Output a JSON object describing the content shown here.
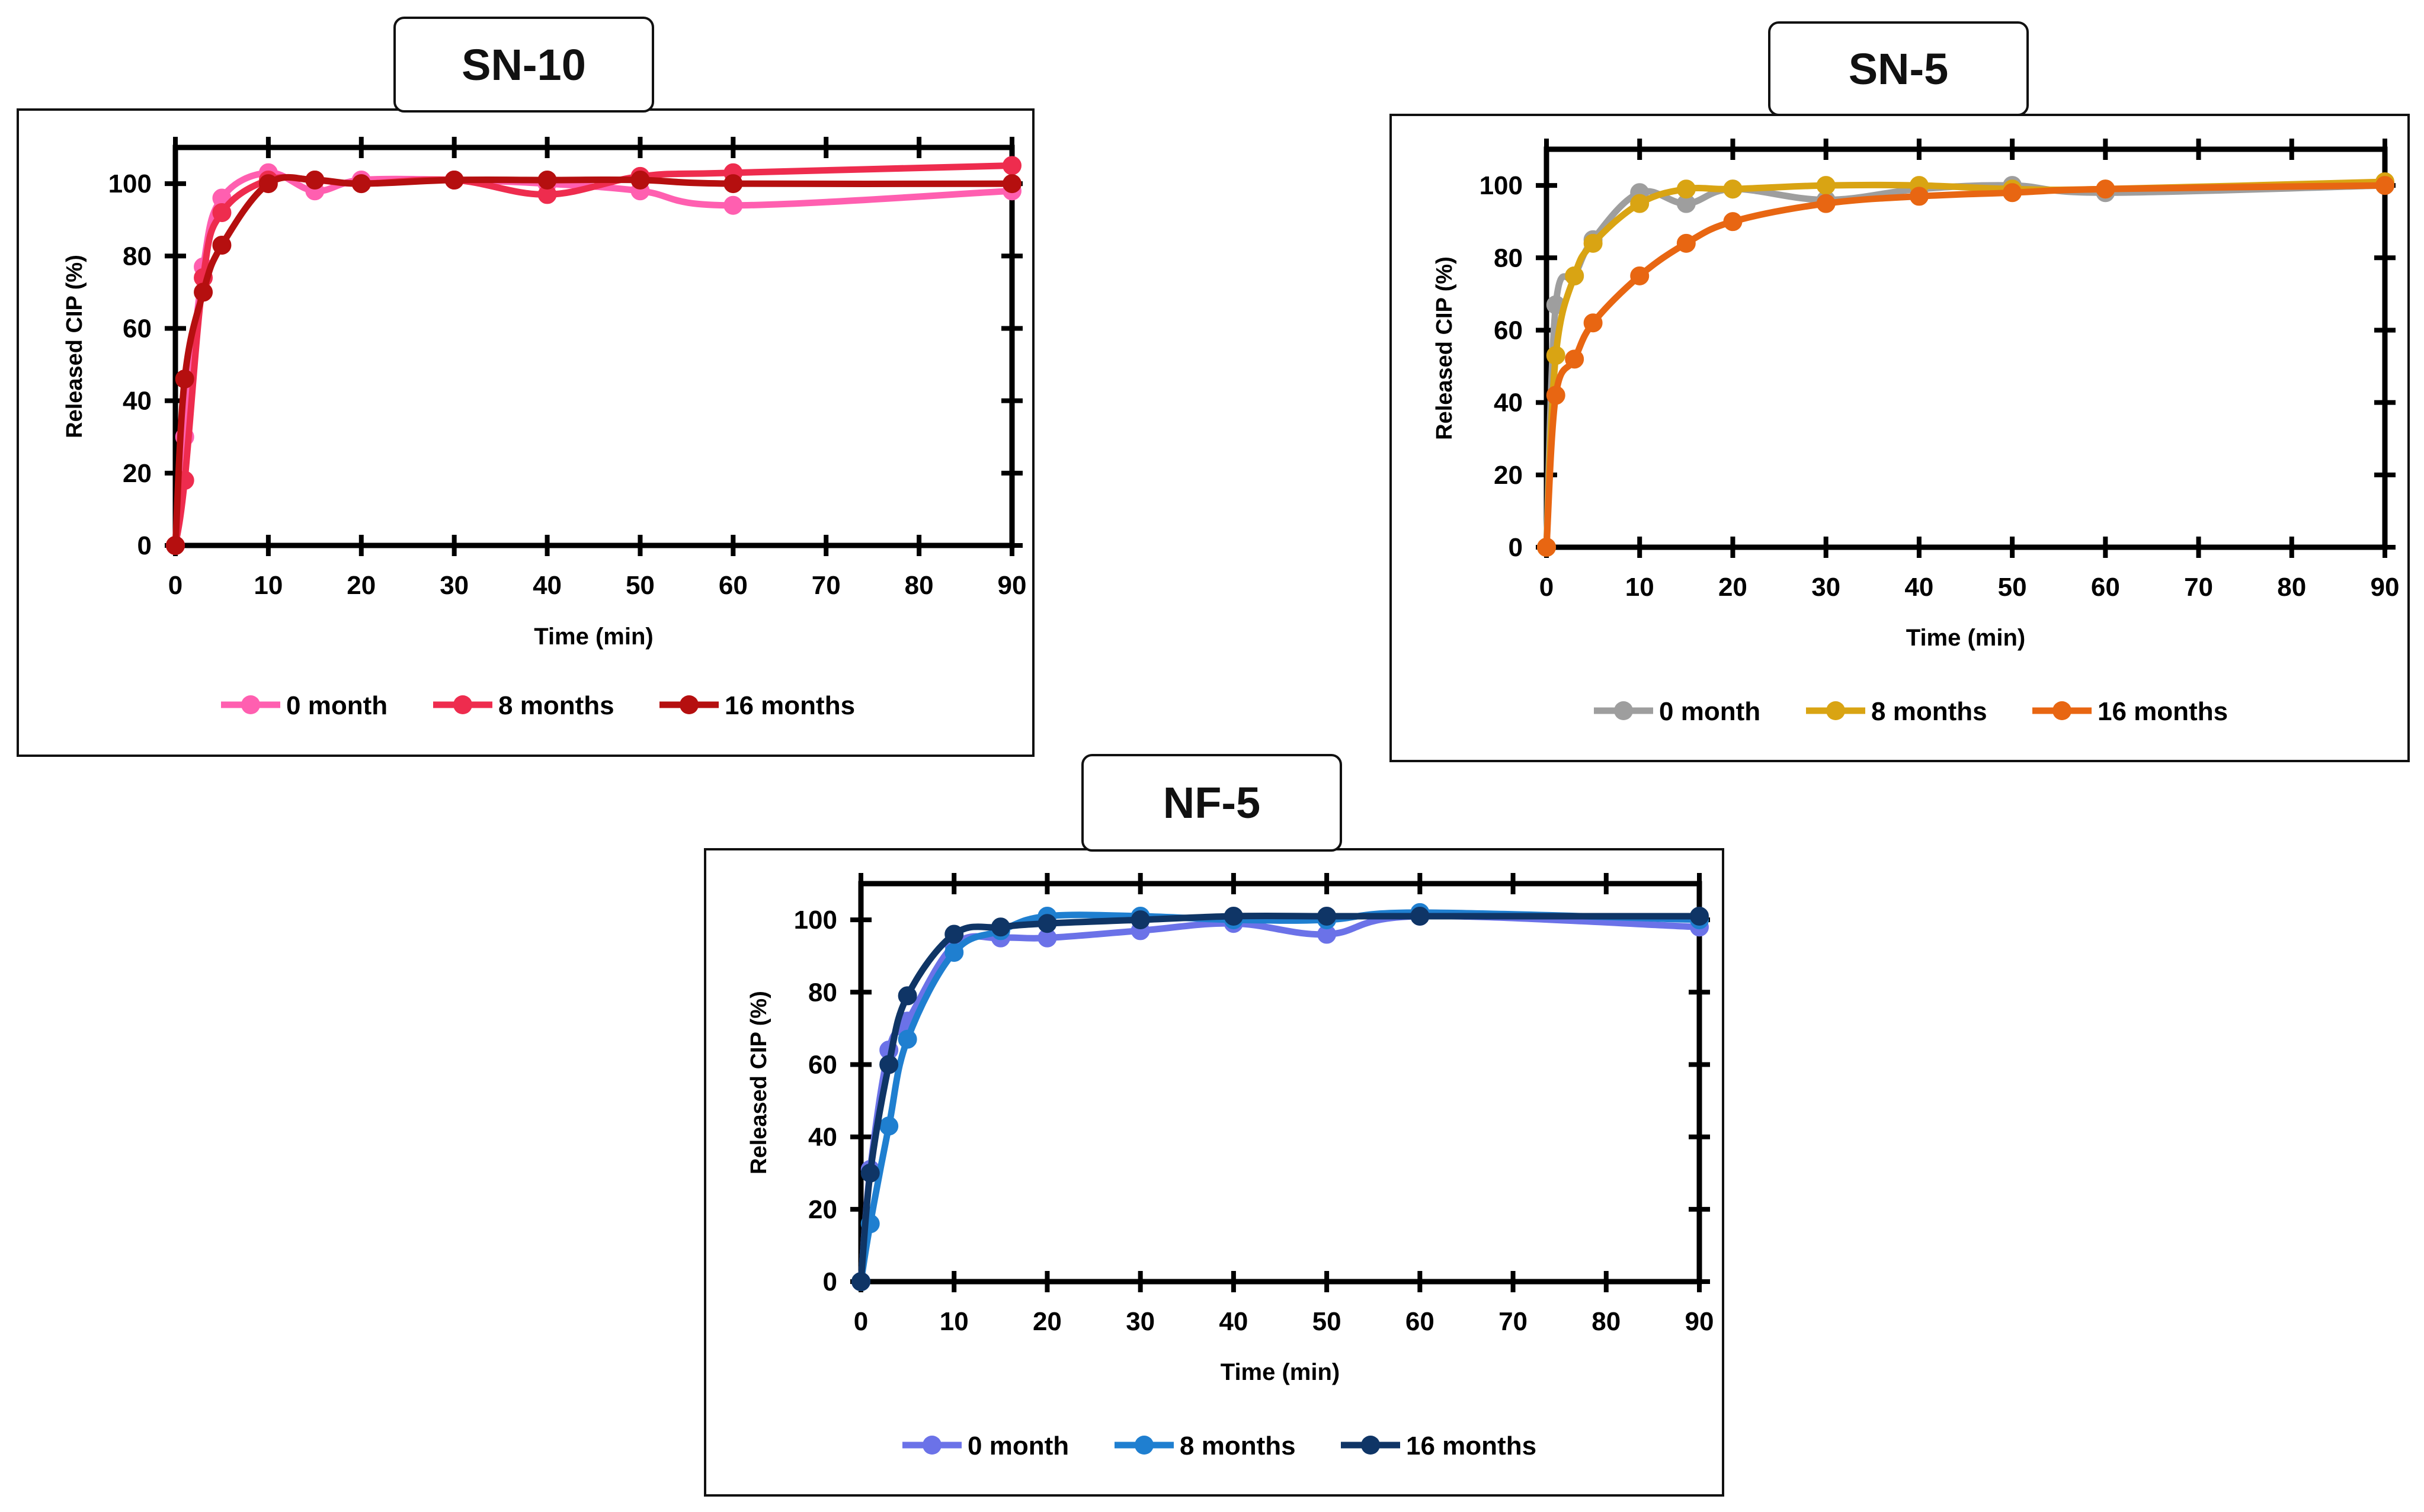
{
  "chart_data": [
    {
      "id": "sn10",
      "type": "line",
      "title": "SN-10",
      "xlabel": "Time (min)",
      "ylabel": "Released CIP (%)",
      "xlim": [
        0,
        90
      ],
      "ylim": [
        0,
        110
      ],
      "xticks": [
        0,
        10,
        20,
        30,
        40,
        50,
        60,
        70,
        80,
        90
      ],
      "yticks": [
        0,
        20,
        40,
        60,
        80,
        100
      ],
      "legend_position": "bottom",
      "series": [
        {
          "name": "0 month",
          "color": "#ff5fb0",
          "x": [
            0,
            1,
            3,
            5,
            10,
            15,
            20,
            30,
            40,
            50,
            60,
            90
          ],
          "y": [
            0,
            30,
            77,
            96,
            103,
            98,
            101,
            101,
            100,
            98,
            94,
            98
          ]
        },
        {
          "name": "8 months",
          "color": "#ee2c4e",
          "x": [
            0,
            1,
            3,
            5,
            10,
            15,
            20,
            30,
            40,
            50,
            60,
            90
          ],
          "y": [
            0,
            18,
            74,
            92,
            101,
            101,
            100,
            101,
            97,
            102,
            103,
            105
          ]
        },
        {
          "name": "16 months",
          "color": "#b50f0f",
          "x": [
            0,
            1,
            3,
            5,
            10,
            15,
            20,
            30,
            40,
            50,
            60,
            90
          ],
          "y": [
            0,
            46,
            70,
            83,
            100,
            101,
            100,
            101,
            101,
            101,
            100,
            100
          ]
        }
      ]
    },
    {
      "id": "sn5",
      "type": "line",
      "title": "SN-5",
      "xlabel": "Time (min)",
      "ylabel": "Released CIP (%)",
      "xlim": [
        0,
        90
      ],
      "ylim": [
        0,
        110
      ],
      "xticks": [
        0,
        10,
        20,
        30,
        40,
        50,
        60,
        70,
        80,
        90
      ],
      "yticks": [
        0,
        20,
        40,
        60,
        80,
        100
      ],
      "legend_position": "bottom",
      "series": [
        {
          "name": "0 month",
          "color": "#9e9e9e",
          "x": [
            0,
            1,
            3,
            5,
            10,
            15,
            20,
            30,
            40,
            50,
            60,
            90
          ],
          "y": [
            0,
            67,
            75,
            85,
            98,
            95,
            99,
            96,
            99,
            100,
            98,
            100
          ]
        },
        {
          "name": "8 months",
          "color": "#d9a413",
          "x": [
            0,
            1,
            3,
            5,
            10,
            15,
            20,
            30,
            40,
            50,
            60,
            90
          ],
          "y": [
            0,
            53,
            75,
            84,
            95,
            99,
            99,
            100,
            100,
            99,
            99,
            101
          ]
        },
        {
          "name": "16 months",
          "color": "#e86612",
          "x": [
            0,
            1,
            3,
            5,
            10,
            15,
            20,
            30,
            40,
            50,
            60,
            90
          ],
          "y": [
            0,
            42,
            52,
            62,
            75,
            84,
            90,
            95,
            97,
            98,
            99,
            100
          ]
        }
      ]
    },
    {
      "id": "nf5",
      "type": "line",
      "title": "NF-5",
      "xlabel": "Time (min)",
      "ylabel": "Released CIP (%)",
      "xlim": [
        0,
        90
      ],
      "ylim": [
        0,
        110
      ],
      "xticks": [
        0,
        10,
        20,
        30,
        40,
        50,
        60,
        70,
        80,
        90
      ],
      "yticks": [
        0,
        20,
        40,
        60,
        80,
        100
      ],
      "legend_position": "bottom",
      "series": [
        {
          "name": "0 month",
          "color": "#6b72e8",
          "x": [
            0,
            1,
            3,
            5,
            10,
            15,
            20,
            30,
            40,
            50,
            60,
            90
          ],
          "y": [
            0,
            31,
            64,
            72,
            93,
            95,
            95,
            97,
            99,
            96,
            101,
            98
          ]
        },
        {
          "name": "8 months",
          "color": "#1f7fd0",
          "x": [
            0,
            1,
            3,
            5,
            10,
            15,
            20,
            30,
            40,
            50,
            60,
            90
          ],
          "y": [
            0,
            16,
            43,
            67,
            91,
            97,
            101,
            101,
            100,
            100,
            102,
            100
          ]
        },
        {
          "name": "16 months",
          "color": "#0f3566",
          "x": [
            0,
            1,
            3,
            5,
            10,
            15,
            20,
            30,
            40,
            50,
            60,
            90
          ],
          "y": [
            0,
            30,
            60,
            79,
            96,
            98,
            99,
            100,
            101,
            101,
            101,
            101
          ]
        }
      ]
    }
  ]
}
